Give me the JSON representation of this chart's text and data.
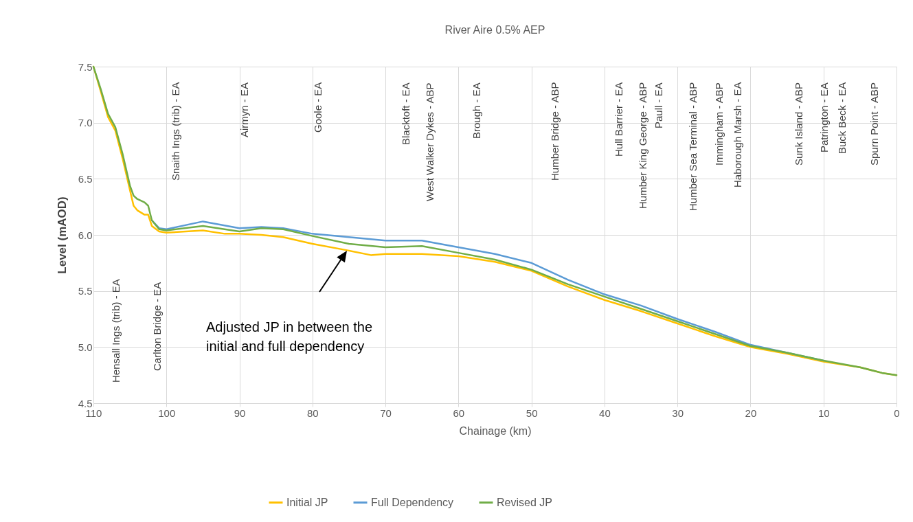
{
  "chart_data": {
    "type": "line",
    "title": "River Aire 0.5% AEP",
    "xlabel": "Chainage (km)",
    "ylabel": "Level (mAOD)",
    "xlim": [
      110,
      0
    ],
    "xticks": [
      110,
      100,
      90,
      80,
      70,
      60,
      50,
      40,
      30,
      20,
      10,
      0
    ],
    "ylim": [
      4.5,
      7.5
    ],
    "yticks": [
      4.5,
      {
        "value": 5,
        "label": "5.0"
      },
      5.5,
      {
        "value": 6,
        "label": "6.0"
      },
      6.5,
      {
        "value": 7,
        "label": "7.0"
      },
      7.5
    ],
    "grid": true,
    "legend": "bottom",
    "line_style": "solid",
    "series": [
      {
        "name": "Initial JP",
        "color": "#ffc000",
        "x": [
          110,
          109,
          108,
          107,
          106,
          105,
          104.5,
          104,
          103,
          102.5,
          102,
          101,
          100,
          95,
          92,
          90,
          87,
          84,
          80,
          75,
          72,
          70,
          65,
          60,
          55,
          50,
          45,
          40,
          35,
          30,
          25,
          20,
          15,
          10,
          5,
          2,
          0
        ],
        "values": [
          7.5,
          7.28,
          7.05,
          6.93,
          6.68,
          6.4,
          6.26,
          6.22,
          6.18,
          6.18,
          6.08,
          6.03,
          6.02,
          6.04,
          6.01,
          6.01,
          6.0,
          5.98,
          5.92,
          5.86,
          5.82,
          5.83,
          5.83,
          5.81,
          5.76,
          5.68,
          5.54,
          5.42,
          5.32,
          5.21,
          5.1,
          5.0,
          4.94,
          4.87,
          4.82,
          4.77,
          4.75
        ]
      },
      {
        "name": "Full Dependency",
        "color": "#5b9bd5",
        "x": [
          102,
          101,
          100,
          95,
          90,
          87,
          84,
          80,
          75,
          70,
          65,
          60,
          55,
          50,
          45,
          40,
          35,
          30,
          25,
          20,
          15,
          10
        ],
        "values": [
          6.13,
          6.06,
          6.05,
          6.12,
          6.06,
          6.07,
          6.06,
          6.01,
          5.98,
          5.95,
          5.95,
          5.89,
          5.83,
          5.75,
          5.6,
          5.47,
          5.37,
          5.25,
          5.14,
          5.02,
          4.95,
          4.88
        ]
      },
      {
        "name": "Revised JP",
        "color": "#70ad47",
        "x": [
          110,
          109,
          108,
          107,
          106,
          105,
          104.5,
          104,
          103,
          102.5,
          102,
          101,
          100,
          95,
          90,
          87,
          84,
          80,
          75,
          70,
          65,
          60,
          55,
          50,
          45,
          40,
          35,
          30,
          25,
          20,
          15,
          10,
          5,
          2,
          0
        ],
        "values": [
          7.5,
          7.3,
          7.08,
          6.96,
          6.72,
          6.44,
          6.35,
          6.32,
          6.29,
          6.26,
          6.13,
          6.05,
          6.04,
          6.08,
          6.03,
          6.06,
          6.05,
          5.99,
          5.92,
          5.89,
          5.9,
          5.84,
          5.78,
          5.69,
          5.56,
          5.45,
          5.34,
          5.23,
          5.12,
          5.01,
          4.95,
          4.88,
          4.82,
          4.77,
          4.75
        ]
      }
    ],
    "annotations": [
      "Hensall Ings (trib) - EA",
      "Carlton Bridge - EA",
      "Snaith Ings (trib) - EA",
      "Airmyn - EA",
      "Goole - EA",
      "Blacktoft - EA",
      "West Walker Dykes - ABP",
      "Brough - EA",
      "Humber Bridge - ABP",
      "Hull Barrier - EA",
      "Humber King George - ABP",
      "Paull - EA",
      "Humber Sea Terminal - ABP",
      "Immingham - ABP",
      "Haborough Marsh - EA",
      "Sunk Island - ABP",
      "Patrington - EA",
      "Buck Beck - EA",
      "Spurn Point - ABP",
      "Adjusted JP in between the\ninitial and full dependency"
    ]
  }
}
